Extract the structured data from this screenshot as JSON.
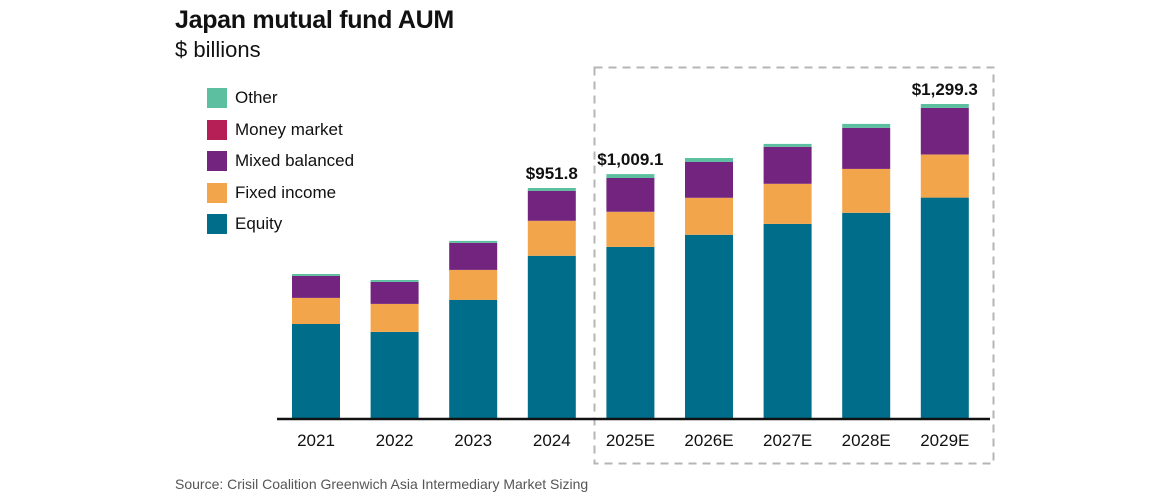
{
  "chart_data": {
    "type": "bar",
    "stacked": true,
    "title": "Japan mutual fund AUM",
    "subtitle": "$ billions",
    "xlabel": "",
    "ylabel": "",
    "categories": [
      "2021",
      "2022",
      "2023",
      "2024",
      "2025E",
      "2026E",
      "2027E",
      "2028E",
      "2029E"
    ],
    "series": [
      {
        "name": "Equity",
        "color": "#006e8a",
        "values": [
          389,
          356,
          489,
          671,
          708,
          758,
          803,
          849,
          912
        ]
      },
      {
        "name": "Fixed income",
        "color": "#f2a54a",
        "values": [
          108,
          116,
          124,
          145,
          145,
          153,
          166,
          182,
          178
        ]
      },
      {
        "name": "Mixed balanced",
        "color": "#73247f",
        "values": [
          91,
          91,
          112,
          124,
          140,
          149,
          153,
          170,
          193
        ]
      },
      {
        "name": "Money market",
        "color": "#b61f55",
        "values": [
          0,
          0,
          0,
          0,
          0,
          0,
          0,
          0,
          0
        ]
      },
      {
        "name": "Other",
        "color": "#5bbfa0",
        "values": [
          8,
          8,
          8,
          11.8,
          16.1,
          16,
          12,
          16,
          16.3
        ]
      }
    ],
    "legend_order": [
      "Other",
      "Money market",
      "Mixed balanced",
      "Fixed income",
      "Equity"
    ],
    "legend_position": "top-left",
    "total_labels": [
      {
        "category": "2024",
        "label": "$951.8"
      },
      {
        "category": "2025E",
        "label": "$1,009.1"
      },
      {
        "category": "2029E",
        "label": "$1,299.3"
      }
    ],
    "forecast_highlight": {
      "categories": [
        "2025E",
        "2026E",
        "2027E",
        "2028E",
        "2029E"
      ],
      "style": "dashed-box"
    },
    "ylim": [
      0,
      1300
    ],
    "grid": false,
    "source": "Source: Crisil Coalition Greenwich Asia Intermediary Market Sizing"
  }
}
